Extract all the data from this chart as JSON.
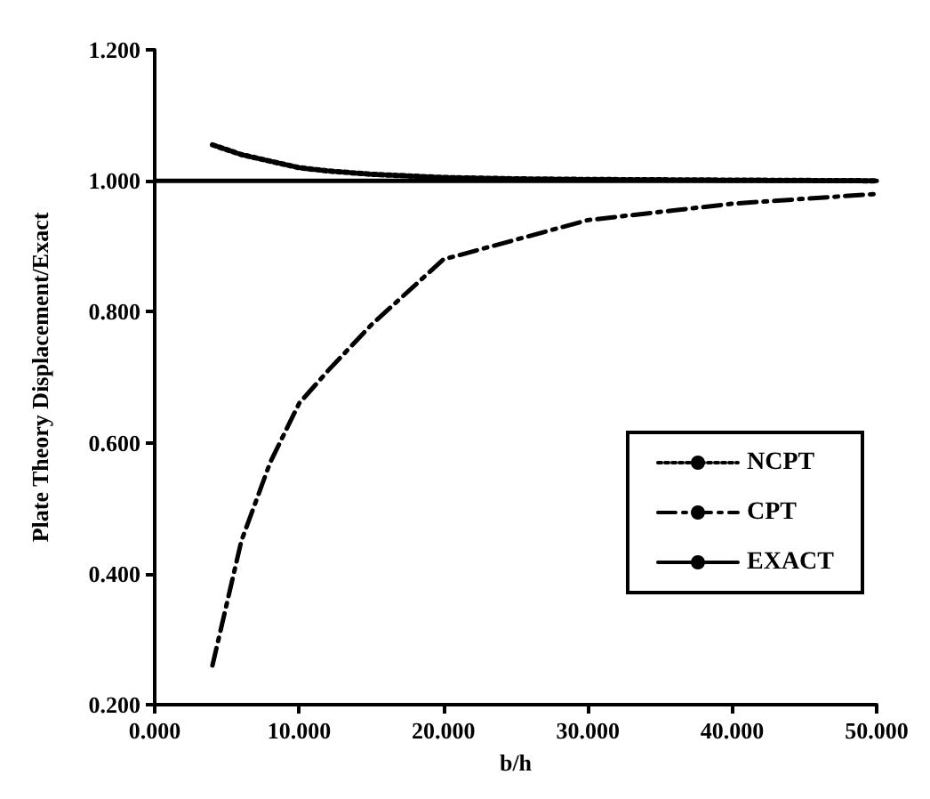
{
  "chart_data": {
    "type": "line",
    "xlabel": "b/h",
    "ylabel": "Plate Theory Displacement/Exact",
    "xlim": [
      0,
      50
    ],
    "ylim": [
      0.2,
      1.2
    ],
    "xticks": [
      {
        "value": 0,
        "label": "0.000"
      },
      {
        "value": 10,
        "label": "10.000"
      },
      {
        "value": 20,
        "label": "20.000"
      },
      {
        "value": 30,
        "label": "30.000"
      },
      {
        "value": 40,
        "label": "40.000"
      },
      {
        "value": 50,
        "label": "50.000"
      }
    ],
    "yticks": [
      {
        "value": 0.2,
        "label": "0.200"
      },
      {
        "value": 0.4,
        "label": "0.400"
      },
      {
        "value": 0.6,
        "label": "0.600"
      },
      {
        "value": 0.8,
        "label": "0.800"
      },
      {
        "value": 1,
        "label": "1.000"
      },
      {
        "value": 1.2,
        "label": "1.200"
      }
    ],
    "grid": false,
    "legend": "right",
    "marker": "none",
    "series": [
      {
        "name": "NCPT",
        "color": "#000000",
        "line_style": "dotted",
        "x": [
          4,
          6,
          8,
          10,
          12,
          15,
          20,
          25,
          30,
          40,
          50
        ],
        "values": [
          1.055,
          1.04,
          1.03,
          1.02,
          1.015,
          1.01,
          1.005,
          1.003,
          1.002,
          1.001,
          1.0
        ]
      },
      {
        "name": "CPT",
        "color": "#000000",
        "line_style": "dashed",
        "x": [
          4,
          6,
          8,
          10,
          12,
          15,
          20,
          25,
          30,
          40,
          50
        ],
        "values": [
          0.26,
          0.45,
          0.57,
          0.66,
          0.71,
          0.78,
          0.88,
          0.91,
          0.94,
          0.965,
          0.98
        ]
      },
      {
        "name": "EXACT",
        "color": "#000000",
        "line_style": "solid",
        "x": [
          0,
          50
        ],
        "values": [
          1.0,
          1.0
        ]
      }
    ]
  }
}
